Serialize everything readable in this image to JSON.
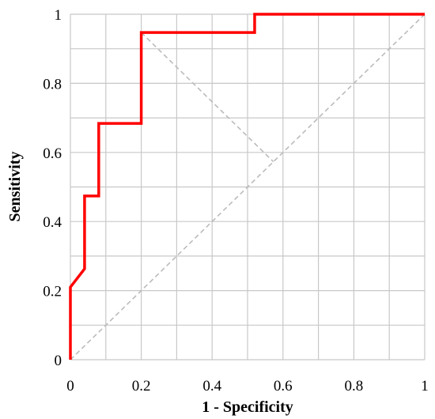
{
  "chart_data": {
    "type": "line",
    "xlabel": "1 - Specificity",
    "ylabel": "Sensitivity",
    "xlim": [
      0,
      1
    ],
    "ylim": [
      0,
      1
    ],
    "x_ticks": [
      "0",
      "0.2",
      "0.4",
      "0.6",
      "0.8",
      "1"
    ],
    "y_ticks": [
      "0",
      "0.2",
      "0.4",
      "0.6",
      "0.8",
      "1"
    ],
    "grid": true,
    "minor_grid_step": 0.1,
    "legend": "none",
    "series": [
      {
        "color": "#ff0000",
        "style": "solid",
        "points": [
          [
            0,
            0
          ],
          [
            0,
            0.21
          ],
          [
            0.04,
            0.263
          ],
          [
            0.04,
            0.474
          ],
          [
            0.08,
            0.474
          ],
          [
            0.08,
            0.684
          ],
          [
            0.2,
            0.684
          ],
          [
            0.2,
            0.947
          ],
          [
            0.52,
            0.947
          ],
          [
            0.52,
            1.0
          ],
          [
            1.0,
            1.0
          ]
        ]
      },
      {
        "color": "#bbbbbb",
        "style": "dashed",
        "points": [
          [
            0,
            0
          ],
          [
            1,
            1
          ]
        ]
      },
      {
        "color": "#bbbbbb",
        "style": "dashed",
        "points": [
          [
            0.2,
            0.947
          ],
          [
            0.573,
            0.573
          ]
        ]
      }
    ]
  }
}
